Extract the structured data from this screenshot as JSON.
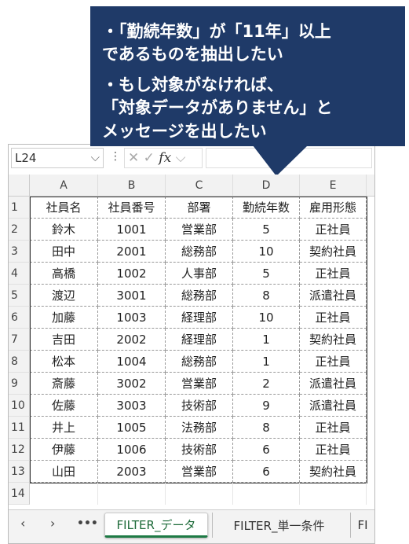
{
  "callout": {
    "lines": [
      "・「勤続年数」が「11年」以上",
      "であるものを抽出したい",
      "・もし対象がなければ、",
      "「対象データがありません」と",
      "メッセージを出したい"
    ]
  },
  "name_box": "L24",
  "formula_icon": "fx",
  "columns": [
    "A",
    "B",
    "C",
    "D",
    "E"
  ],
  "row_numbers": [
    1,
    2,
    3,
    4,
    5,
    6,
    7,
    8,
    9,
    10,
    11,
    12,
    13,
    14
  ],
  "table": {
    "header": [
      "社員名",
      "社員番号",
      "部署",
      "勤続年数",
      "雇用形態"
    ],
    "rows": [
      [
        "鈴木",
        1001,
        "営業部",
        5,
        "正社員"
      ],
      [
        "田中",
        2001,
        "総務部",
        10,
        "契約社員"
      ],
      [
        "高橋",
        1002,
        "人事部",
        5,
        "正社員"
      ],
      [
        "渡辺",
        3001,
        "総務部",
        8,
        "派遣社員"
      ],
      [
        "加藤",
        1003,
        "経理部",
        10,
        "正社員"
      ],
      [
        "吉田",
        2002,
        "経理部",
        1,
        "契約社員"
      ],
      [
        "松本",
        1004,
        "総務部",
        1,
        "正社員"
      ],
      [
        "斎藤",
        3002,
        "営業部",
        2,
        "派遣社員"
      ],
      [
        "佐藤",
        3003,
        "技術部",
        9,
        "派遣社員"
      ],
      [
        "井上",
        1005,
        "法務部",
        8,
        "正社員"
      ],
      [
        "伊藤",
        1006,
        "技術部",
        6,
        "正社員"
      ],
      [
        "山田",
        2003,
        "営業部",
        6,
        "契約社員"
      ]
    ]
  },
  "sheet_tabs": [
    "FILTER_データ",
    "FILTER_単一条件",
    "FI"
  ]
}
